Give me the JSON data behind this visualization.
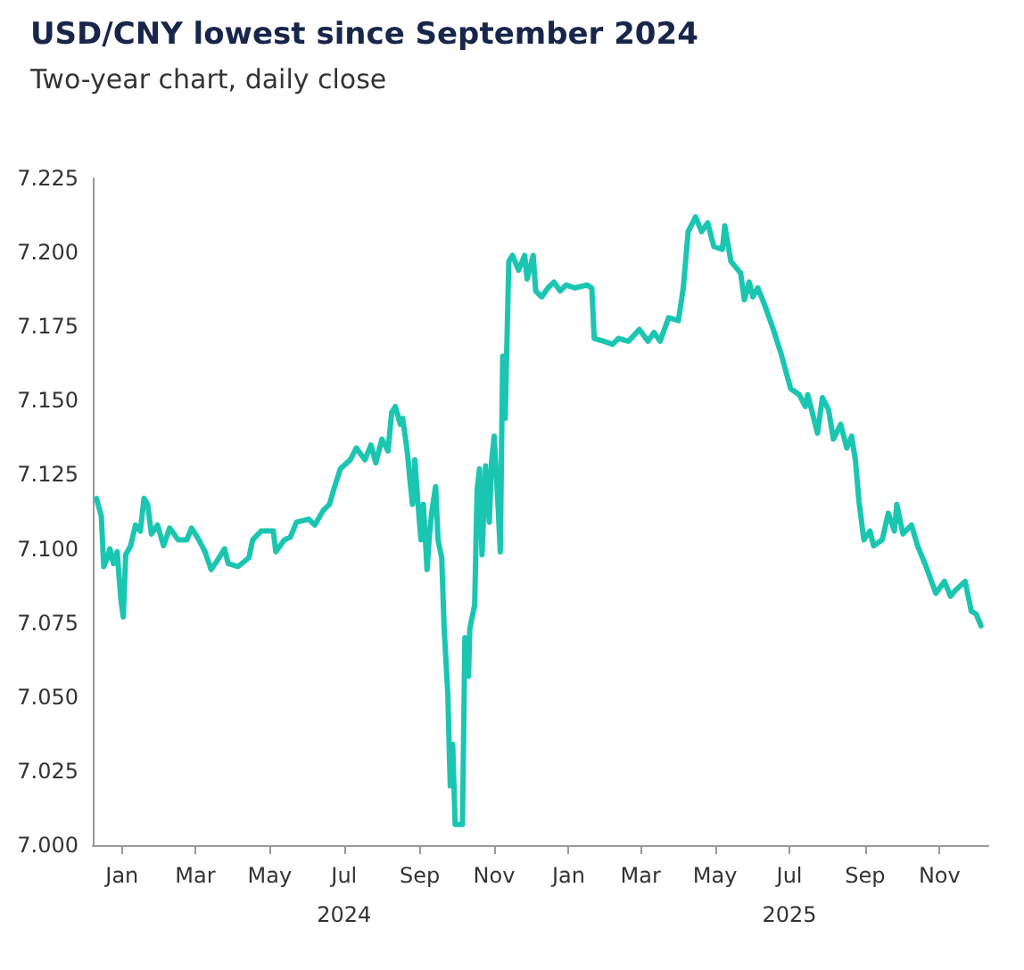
{
  "chart_data": {
    "type": "line",
    "title": "USD/CNY lowest since September 2024",
    "subtitle": "Two-year chart, daily close",
    "x": [
      "2023-12-11",
      "2023-12-15",
      "2023-12-17",
      "2023-12-20",
      "2023-12-22",
      "2023-12-25",
      "2023-12-28",
      "2023-12-31",
      "2024-01-02",
      "2024-01-04",
      "2024-01-08",
      "2024-01-12",
      "2024-01-16",
      "2024-01-19",
      "2024-01-22",
      "2024-01-25",
      "2024-01-30",
      "2024-02-04",
      "2024-02-09",
      "2024-02-16",
      "2024-02-23",
      "2024-02-27",
      "2024-03-04",
      "2024-03-09",
      "2024-03-14",
      "2024-03-19",
      "2024-03-25",
      "2024-03-28",
      "2024-04-05",
      "2024-04-14",
      "2024-04-17",
      "2024-04-24",
      "2024-05-04",
      "2024-05-06",
      "2024-05-13",
      "2024-05-18",
      "2024-05-23",
      "2024-06-02",
      "2024-06-07",
      "2024-06-14",
      "2024-06-19",
      "2024-06-24",
      "2024-06-28",
      "2024-07-06",
      "2024-07-11",
      "2024-07-18",
      "2024-07-23",
      "2024-07-27",
      "2024-08-01",
      "2024-08-06",
      "2024-08-09",
      "2024-08-12",
      "2024-08-16",
      "2024-08-18",
      "2024-08-22",
      "2024-08-24",
      "2024-08-26",
      "2024-08-28",
      "2024-08-30",
      "2024-09-02",
      "2024-09-04",
      "2024-09-07",
      "2024-09-09",
      "2024-09-11",
      "2024-09-14",
      "2024-09-16",
      "2024-09-19",
      "2024-09-21",
      "2024-09-24",
      "2024-09-26",
      "2024-09-28",
      "2024-09-30",
      "2024-10-06",
      "2024-10-08",
      "2024-10-11",
      "2024-10-12",
      "2024-10-16",
      "2024-10-18",
      "2024-10-20",
      "2024-10-22",
      "2024-10-25",
      "2024-10-28",
      "2024-10-30",
      "2024-11-01",
      "2024-11-04",
      "2024-11-06",
      "2024-11-08",
      "2024-11-10",
      "2024-11-13",
      "2024-11-16",
      "2024-11-21",
      "2024-11-26",
      "2024-11-28",
      "2024-12-03",
      "2024-12-05",
      "2024-12-10",
      "2024-12-15",
      "2024-12-20",
      "2024-12-25",
      "2024-12-30",
      "2025-01-06",
      "2025-01-16",
      "2025-01-20",
      "2025-01-22",
      "2025-01-30",
      "2025-02-06",
      "2025-02-11",
      "2025-02-19",
      "2025-02-28",
      "2025-03-07",
      "2025-03-12",
      "2025-03-17",
      "2025-03-24",
      "2025-04-01",
      "2025-04-05",
      "2025-04-09",
      "2025-04-15",
      "2025-04-20",
      "2025-04-25",
      "2025-04-30",
      "2025-05-07",
      "2025-05-09",
      "2025-05-14",
      "2025-05-22",
      "2025-05-25",
      "2025-05-29",
      "2025-06-01",
      "2025-06-05",
      "2025-06-10",
      "2025-06-17",
      "2025-06-24",
      "2025-07-02",
      "2025-07-09",
      "2025-07-14",
      "2025-07-16",
      "2025-07-24",
      "2025-07-28",
      "2025-08-02",
      "2025-08-06",
      "2025-08-12",
      "2025-08-17",
      "2025-08-21",
      "2025-08-24",
      "2025-08-27",
      "2025-08-31",
      "2025-09-05",
      "2025-09-08",
      "2025-09-15",
      "2025-09-20",
      "2025-09-25",
      "2025-09-27",
      "2025-10-02",
      "2025-10-09",
      "2025-10-14",
      "2025-10-21",
      "2025-10-29",
      "2025-11-05",
      "2025-11-10",
      "2025-11-14",
      "2025-11-22",
      "2025-11-27",
      "2025-12-01",
      "2025-12-05"
    ],
    "series": [
      {
        "color": "#1ac6b2",
        "values": [
          7.117,
          7.111,
          7.094,
          7.097,
          7.1,
          7.095,
          7.099,
          7.083,
          7.077,
          7.098,
          7.101,
          7.108,
          7.106,
          7.117,
          7.115,
          7.105,
          7.108,
          7.101,
          7.107,
          7.103,
          7.103,
          7.107,
          7.103,
          7.099,
          7.093,
          7.096,
          7.1,
          7.095,
          7.094,
          7.097,
          7.103,
          7.106,
          7.106,
          7.099,
          7.103,
          7.104,
          7.109,
          7.11,
          7.108,
          7.113,
          7.115,
          7.122,
          7.127,
          7.13,
          7.134,
          7.13,
          7.135,
          7.129,
          7.137,
          7.133,
          7.146,
          7.148,
          7.142,
          7.144,
          7.132,
          7.123,
          7.115,
          7.13,
          7.118,
          7.103,
          7.115,
          7.093,
          7.105,
          7.113,
          7.121,
          7.103,
          7.097,
          7.073,
          7.051,
          7.02,
          7.034,
          7.007,
          7.007,
          7.07,
          7.057,
          7.073,
          7.081,
          7.12,
          7.127,
          7.098,
          7.128,
          7.109,
          7.13,
          7.138,
          7.116,
          7.099,
          7.165,
          7.144,
          7.197,
          7.199,
          7.194,
          7.199,
          7.191,
          7.199,
          7.187,
          7.185,
          7.188,
          7.19,
          7.187,
          7.189,
          7.188,
          7.189,
          7.188,
          7.171,
          7.17,
          7.169,
          7.171,
          7.17,
          7.174,
          7.17,
          7.173,
          7.17,
          7.178,
          7.177,
          7.188,
          7.207,
          7.212,
          7.207,
          7.21,
          7.202,
          7.201,
          7.209,
          7.197,
          7.193,
          7.184,
          7.19,
          7.185,
          7.188,
          7.183,
          7.175,
          7.166,
          7.154,
          7.152,
          7.148,
          7.152,
          7.139,
          7.151,
          7.147,
          7.137,
          7.142,
          7.134,
          7.138,
          7.13,
          7.116,
          7.103,
          7.106,
          7.101,
          7.103,
          7.112,
          7.106,
          7.115,
          7.105,
          7.108,
          7.101,
          7.094,
          7.085,
          7.089,
          7.084,
          7.086,
          7.089,
          7.079,
          7.078,
          7.074
        ]
      }
    ],
    "xlim": [
      "2023-12-08",
      "2025-12-11"
    ],
    "xticks": [
      {
        "value": "2024-01-01",
        "label": "Jan"
      },
      {
        "value": "2024-03-01",
        "label": "Mar"
      },
      {
        "value": "2024-05-01",
        "label": "May"
      },
      {
        "value": "2024-07-01",
        "label": "Jul\n2024"
      },
      {
        "value": "2024-09-01",
        "label": "Sep"
      },
      {
        "value": "2024-11-01",
        "label": "Nov"
      },
      {
        "value": "2025-01-01",
        "label": "Jan"
      },
      {
        "value": "2025-03-01",
        "label": "Mar"
      },
      {
        "value": "2025-05-01",
        "label": "May"
      },
      {
        "value": "2025-07-01",
        "label": "Jul\n2025"
      },
      {
        "value": "2025-09-01",
        "label": "Sep"
      },
      {
        "value": "2025-11-01",
        "label": "Nov"
      }
    ],
    "ylim": [
      7.0,
      7.225
    ],
    "yticks": [
      {
        "value": 7.0,
        "label": "7.000"
      },
      7.025,
      {
        "value": 7.05,
        "label": "7.050"
      },
      7.075,
      {
        "value": 7.1,
        "label": "7.100"
      },
      7.125,
      {
        "value": 7.15,
        "label": "7.150"
      },
      7.175,
      {
        "value": 7.2,
        "label": "7.200"
      },
      7.225
    ],
    "grid": false,
    "marker": "none",
    "line_style": "solid"
  }
}
